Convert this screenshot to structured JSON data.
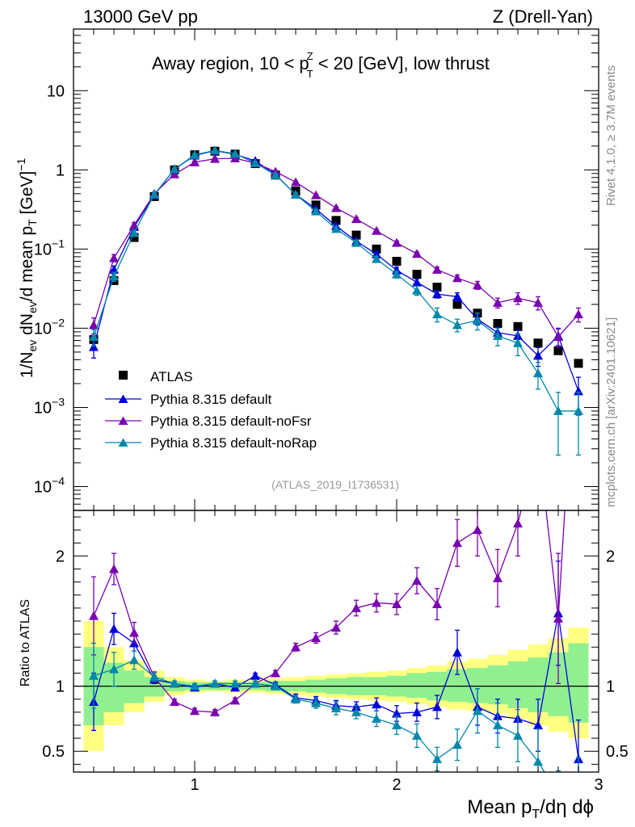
{
  "header": {
    "left": "13000 GeV pp",
    "right": "Z (Drell-Yan)"
  },
  "main_title": {
    "pre": "Away region, 10 < p",
    "sup": "Z",
    "sub": "T",
    "post": " < 20 [GeV], low thrust"
  },
  "analysis_id": "(ATLAS_2019_I1736531)",
  "side_labels": {
    "rivet": "Rivet 4.1.0, ≥ 3.7M events",
    "mcplots": "mcplots.cern.ch [arXiv:2401.10621]"
  },
  "colors": {
    "atlas": "#000000",
    "default": "#0000dd",
    "noFsr": "#7a00b0",
    "noRap": "#0088aa",
    "band_outer": "#ffff80",
    "band_inner": "#90f090"
  },
  "chart_data": [
    {
      "id": "main",
      "type": "line",
      "yscale": "log",
      "ylim": [
        5e-05,
        60
      ],
      "xlim": [
        0.4,
        3.0
      ],
      "ylabel": "1/N_ev dN_ev/d mean p_T [GeV]^-1",
      "yticks": [
        {
          "value": 0.0001,
          "base": "10",
          "exp": "−4"
        },
        {
          "value": 0.001,
          "base": "10",
          "exp": "−3"
        },
        {
          "value": 0.01,
          "base": "10",
          "exp": "−2"
        },
        {
          "value": 0.1,
          "base": "10",
          "exp": "−1"
        },
        {
          "value": 1,
          "base": "1",
          "exp": ""
        },
        {
          "value": 10,
          "base": "10",
          "exp": ""
        }
      ],
      "x": [
        0.5,
        0.6,
        0.7,
        0.8,
        0.9,
        1.0,
        1.1,
        1.2,
        1.3,
        1.4,
        1.5,
        1.6,
        1.7,
        1.8,
        1.9,
        2.0,
        2.1,
        2.2,
        2.3,
        2.4,
        2.5,
        2.6,
        2.7,
        2.8,
        2.9
      ],
      "series": [
        {
          "key": "atlas",
          "name": "ATLAS",
          "marker": "square",
          "values": [
            0.0072,
            0.04,
            0.14,
            0.46,
            1.0,
            1.55,
            1.72,
            1.58,
            1.2,
            0.86,
            0.54,
            0.36,
            0.23,
            0.15,
            0.1,
            0.07,
            0.048,
            0.033,
            0.02,
            0.0155,
            0.0115,
            0.0105,
            0.0065,
            0.0052,
            0.0036
          ]
        },
        {
          "key": "default",
          "name": "Pythia 8.315 default",
          "marker": "triangle",
          "values": [
            0.0058,
            0.055,
            0.19,
            0.48,
            1.02,
            1.52,
            1.75,
            1.57,
            1.3,
            0.87,
            0.49,
            0.32,
            0.195,
            0.126,
            0.086,
            0.054,
            0.038,
            0.027,
            0.025,
            0.013,
            0.0088,
            0.008,
            0.0045,
            0.008,
            0.0016
          ],
          "errors": [
            0.0016,
            0.006,
            0.012,
            0.02,
            0.03,
            0.04,
            0.04,
            0.04,
            0.03,
            0.03,
            0.02,
            0.015,
            0.01,
            0.008,
            0.006,
            0.005,
            0.004,
            0.003,
            0.003,
            0.002,
            0.0015,
            0.0015,
            0.0012,
            0.002,
            0.0008
          ]
        },
        {
          "key": "noFsr",
          "name": "Pythia 8.315 default-noFsr",
          "marker": "triangle",
          "values": [
            0.011,
            0.077,
            0.2,
            0.5,
            0.88,
            1.25,
            1.38,
            1.4,
            1.22,
            0.95,
            0.7,
            0.48,
            0.33,
            0.24,
            0.17,
            0.12,
            0.087,
            0.055,
            0.043,
            0.035,
            0.021,
            0.024,
            0.021,
            0.0078,
            0.015
          ],
          "errors": [
            0.0025,
            0.008,
            0.015,
            0.02,
            0.03,
            0.04,
            0.04,
            0.04,
            0.03,
            0.03,
            0.02,
            0.015,
            0.012,
            0.01,
            0.008,
            0.006,
            0.005,
            0.004,
            0.004,
            0.004,
            0.003,
            0.004,
            0.004,
            0.002,
            0.003
          ]
        },
        {
          "key": "noRap",
          "name": "Pythia 8.315 default-noRap",
          "marker": "triangle",
          "values": [
            0.0078,
            0.045,
            0.16,
            0.49,
            1.02,
            1.55,
            1.76,
            1.6,
            1.22,
            0.86,
            0.49,
            0.3,
            0.18,
            0.12,
            0.075,
            0.048,
            0.03,
            0.015,
            0.011,
            0.0125,
            0.008,
            0.0065,
            0.0027,
            0.0009,
            0.0009
          ],
          "errors": [
            0.0018,
            0.006,
            0.012,
            0.02,
            0.03,
            0.04,
            0.04,
            0.04,
            0.03,
            0.03,
            0.02,
            0.015,
            0.01,
            0.008,
            0.006,
            0.005,
            0.004,
            0.003,
            0.002,
            0.003,
            0.002,
            0.002,
            0.001,
            0.00065,
            0.00065
          ]
        }
      ]
    },
    {
      "id": "ratio",
      "type": "line",
      "ylim": [
        0.34,
        2.35
      ],
      "xlim": [
        0.4,
        3.0
      ],
      "ylabel": "Ratio to ATLAS",
      "xlabel": "Mean p_T/dη dϕ",
      "yticks": [
        0.5,
        1,
        2
      ],
      "ytick_labels": [
        "0.5",
        "1",
        "2"
      ],
      "xticks": [
        1,
        2,
        3
      ],
      "xtick_labels": [
        "1",
        "2",
        "3"
      ],
      "reference": 1,
      "x": [
        0.5,
        0.6,
        0.7,
        0.8,
        0.9,
        1.0,
        1.1,
        1.2,
        1.3,
        1.4,
        1.5,
        1.6,
        1.7,
        1.8,
        1.9,
        2.0,
        2.1,
        2.2,
        2.3,
        2.4,
        2.5,
        2.6,
        2.7,
        2.8,
        2.9
      ],
      "band_outer": [
        0.5,
        0.7,
        0.8,
        0.88,
        0.93,
        0.95,
        0.96,
        0.95,
        0.95,
        0.94,
        0.93,
        0.92,
        0.91,
        0.9,
        0.89,
        0.88,
        0.86,
        0.84,
        0.82,
        0.81,
        0.79,
        0.75,
        0.7,
        0.65,
        0.6
      ],
      "band_outer_hi": [
        1.5,
        1.3,
        1.2,
        1.12,
        1.07,
        1.05,
        1.04,
        1.05,
        1.05,
        1.06,
        1.07,
        1.08,
        1.09,
        1.1,
        1.11,
        1.12,
        1.14,
        1.16,
        1.19,
        1.21,
        1.24,
        1.28,
        1.32,
        1.37,
        1.45
      ],
      "band_inner": [
        0.7,
        0.8,
        0.87,
        0.92,
        0.96,
        0.97,
        0.97,
        0.97,
        0.97,
        0.96,
        0.96,
        0.95,
        0.94,
        0.93,
        0.93,
        0.92,
        0.91,
        0.89,
        0.88,
        0.87,
        0.86,
        0.83,
        0.8,
        0.77,
        0.72
      ],
      "band_inner_hi": [
        1.3,
        1.18,
        1.12,
        1.07,
        1.04,
        1.03,
        1.03,
        1.03,
        1.03,
        1.04,
        1.04,
        1.05,
        1.06,
        1.07,
        1.07,
        1.08,
        1.1,
        1.11,
        1.13,
        1.14,
        1.16,
        1.19,
        1.22,
        1.26,
        1.33
      ],
      "series": [
        {
          "key": "default",
          "name": "Pythia 8.315 default",
          "values": [
            0.88,
            1.44,
            1.33,
            1.05,
            1.02,
            0.99,
            1.02,
            0.99,
            1.08,
            1.01,
            0.91,
            0.89,
            0.85,
            0.84,
            0.86,
            0.79,
            0.8,
            0.84,
            1.26,
            0.84,
            0.77,
            0.75,
            0.7,
            1.56,
            0.44
          ],
          "errors": [
            0.22,
            0.12,
            0.06,
            0.03,
            0.02,
            0.02,
            0.02,
            0.02,
            0.02,
            0.02,
            0.03,
            0.03,
            0.04,
            0.04,
            0.05,
            0.06,
            0.07,
            0.09,
            0.17,
            0.14,
            0.13,
            0.15,
            0.2,
            0.4,
            0.3
          ]
        },
        {
          "key": "noFsr",
          "name": "Pythia 8.315 default-noFsr",
          "values": [
            1.54,
            1.9,
            1.41,
            1.07,
            0.88,
            0.81,
            0.8,
            0.89,
            1.02,
            1.1,
            1.3,
            1.37,
            1.45,
            1.6,
            1.64,
            1.63,
            1.81,
            1.63,
            2.1,
            2.2,
            1.83,
            2.25,
            2.9,
            1.52,
            4.1
          ],
          "errors": [
            0.3,
            0.12,
            0.08,
            0.04,
            0.02,
            0.02,
            0.02,
            0.02,
            0.02,
            0.02,
            0.03,
            0.04,
            0.05,
            0.06,
            0.07,
            0.08,
            0.1,
            0.12,
            0.18,
            0.2,
            0.22,
            0.25,
            0.4,
            0.5,
            0.8
          ]
        },
        {
          "key": "noRap",
          "name": "Pythia 8.315 default-noRap",
          "values": [
            1.08,
            1.13,
            1.2,
            1.07,
            1.02,
            1.0,
            1.02,
            1.02,
            1.02,
            1.0,
            0.9,
            0.87,
            0.83,
            0.8,
            0.75,
            0.7,
            0.62,
            0.44,
            0.55,
            0.81,
            0.7,
            0.62,
            0.42,
            0.17,
            0.25
          ],
          "errors": [
            0.25,
            0.13,
            0.07,
            0.03,
            0.02,
            0.02,
            0.02,
            0.02,
            0.02,
            0.02,
            0.03,
            0.04,
            0.05,
            0.05,
            0.06,
            0.07,
            0.09,
            0.09,
            0.12,
            0.17,
            0.17,
            0.2,
            0.25,
            0.18,
            0.2
          ]
        }
      ]
    }
  ]
}
